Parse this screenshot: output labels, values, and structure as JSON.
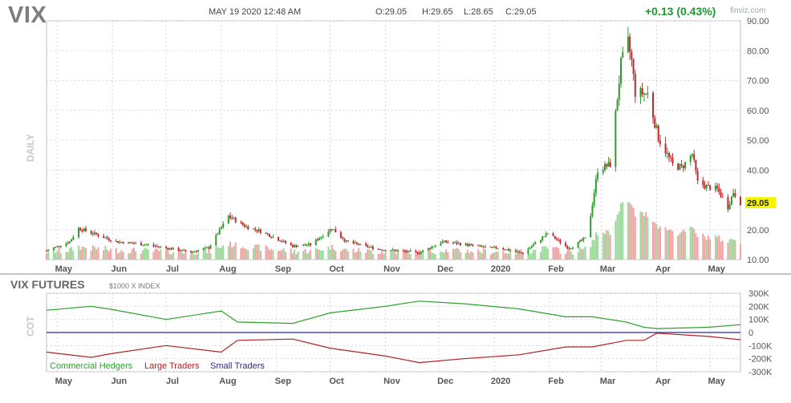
{
  "header": {
    "ticker": "VIX",
    "datetime": "MAY 19 2020 12:48 AM",
    "open": "O:29.05",
    "high": "H:29.65",
    "low": "L:28.65",
    "close": "C:29.05",
    "change": "+0.13 (0.43%)",
    "brand": "finviz.com"
  },
  "main_chart": {
    "period_label": "DAILY",
    "last_price_label": "29.05",
    "months": [
      "May",
      "Jun",
      "Jul",
      "Aug",
      "Sep",
      "Oct",
      "Nov",
      "Dec",
      "2020",
      "Feb",
      "Mar",
      "Apr",
      "May"
    ]
  },
  "cot_panel": {
    "title": "VIX FUTURES",
    "subtitle": "$1000 X INDEX",
    "side_label": "COT",
    "legend": [
      {
        "label": "Commercial Hedgers",
        "color": "#2ca02c"
      },
      {
        "label": "Large Traders",
        "color": "#b22222"
      },
      {
        "label": "Small Traders",
        "color": "#2b2b8a"
      }
    ]
  },
  "colors": {
    "up": "#2e9b2e",
    "down": "#c0282d",
    "vol_up": "#9bd99b",
    "vol_down": "#f0a3a3",
    "grid": "#d9d9d9",
    "price_tag": "#f5f500"
  },
  "chart_data": [
    {
      "type": "candlestick",
      "title": "VIX",
      "x_tick_labels": [
        "May",
        "Jun",
        "Jul",
        "Aug",
        "Sep",
        "Oct",
        "Nov",
        "Dec",
        "2020",
        "Feb",
        "Mar",
        "Apr",
        "May"
      ],
      "y_tick_labels": [
        "10.00",
        "20.00",
        "29.05",
        "40.00",
        "50.00",
        "60.00",
        "70.00",
        "80.00",
        "90.00"
      ],
      "ylim": [
        10,
        90
      ],
      "grid": true,
      "series_anchors": {
        "x": [
          "2019-04-25",
          "2019-05-08",
          "2019-05-13",
          "2019-06-03",
          "2019-06-20",
          "2019-07-15",
          "2019-07-25",
          "2019-08-05",
          "2019-08-15",
          "2019-08-23",
          "2019-09-10",
          "2019-09-20",
          "2019-10-02",
          "2019-10-10",
          "2019-10-28",
          "2019-11-20",
          "2019-12-03",
          "2019-12-10",
          "2019-12-31",
          "2020-01-03",
          "2020-01-17",
          "2020-01-31",
          "2020-02-12",
          "2020-02-21",
          "2020-02-24",
          "2020-02-28",
          "2020-03-06",
          "2020-03-12",
          "2020-03-16",
          "2020-03-18",
          "2020-03-20",
          "2020-03-27",
          "2020-04-02",
          "2020-04-10",
          "2020-04-15",
          "2020-04-21",
          "2020-04-24",
          "2020-04-30",
          "2020-05-05",
          "2020-05-11",
          "2020-05-14",
          "2020-05-18"
        ],
        "close": [
          13.0,
          16.0,
          20.5,
          16.0,
          15.0,
          12.5,
          14.0,
          24.5,
          21.0,
          19.5,
          14.5,
          15.0,
          20.5,
          16.0,
          13.5,
          12.3,
          16.0,
          15.5,
          13.8,
          14.0,
          12.1,
          18.8,
          13.7,
          17.1,
          25.0,
          40.1,
          41.9,
          75.5,
          82.7,
          76.5,
          66.0,
          65.5,
          50.9,
          41.7,
          40.8,
          45.4,
          35.9,
          34.2,
          33.6,
          27.6,
          32.6,
          29.05
        ]
      },
      "last_price": 29.05
    },
    {
      "type": "line",
      "title": "VIX FUTURES",
      "subtitle": "$1000 X INDEX",
      "y_tick_labels": [
        "300K",
        "200K",
        "100K",
        "0",
        "-100K",
        "-200K",
        "-300K"
      ],
      "ylim": [
        -300000,
        300000
      ],
      "x_tick_labels": [
        "May",
        "Jun",
        "Jul",
        "Aug",
        "Sep",
        "Oct",
        "Nov",
        "Dec",
        "2020",
        "Feb",
        "Mar",
        "Apr",
        "May"
      ],
      "series": [
        {
          "name": "Commercial Hedgers",
          "x": [
            "2019-04-25",
            "2019-05-20",
            "2019-06-01",
            "2019-07-01",
            "2019-08-01",
            "2019-08-10",
            "2019-09-10",
            "2019-10-01",
            "2019-11-01",
            "2019-11-20",
            "2019-12-15",
            "2020-01-15",
            "2020-02-10",
            "2020-02-25",
            "2020-03-15",
            "2020-03-25",
            "2020-04-01",
            "2020-04-30",
            "2020-05-18"
          ],
          "values": [
            170000,
            200000,
            175000,
            100000,
            165000,
            80000,
            70000,
            150000,
            200000,
            240000,
            220000,
            180000,
            120000,
            120000,
            80000,
            40000,
            30000,
            40000,
            60000
          ]
        },
        {
          "name": "Large Traders",
          "x": [
            "2019-04-25",
            "2019-05-20",
            "2019-06-01",
            "2019-07-01",
            "2019-08-01",
            "2019-08-10",
            "2019-09-10",
            "2019-10-01",
            "2019-11-01",
            "2019-11-20",
            "2019-12-15",
            "2020-01-15",
            "2020-02-10",
            "2020-02-25",
            "2020-03-15",
            "2020-03-25",
            "2020-04-01",
            "2020-04-30",
            "2020-05-18"
          ],
          "values": [
            -150000,
            -190000,
            -160000,
            -100000,
            -150000,
            -60000,
            -50000,
            -120000,
            -180000,
            -230000,
            -200000,
            -170000,
            -110000,
            -110000,
            -60000,
            -60000,
            -5000,
            -30000,
            -55000
          ]
        },
        {
          "name": "Small Traders",
          "x": [
            "2019-04-25",
            "2020-05-18"
          ],
          "values": [
            0,
            0
          ]
        }
      ]
    }
  ]
}
